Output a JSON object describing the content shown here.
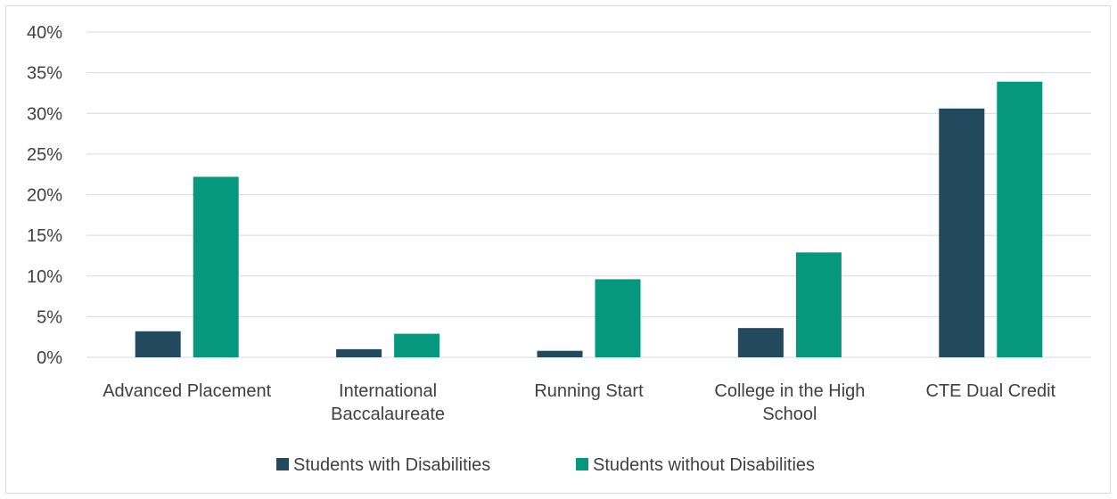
{
  "chart_data": {
    "type": "bar",
    "categories": [
      [
        "Advanced Placement"
      ],
      [
        "International",
        "Baccalaureate"
      ],
      [
        "Running Start"
      ],
      [
        "College in the High",
        "School"
      ],
      [
        "CTE Dual Credit"
      ]
    ],
    "series": [
      {
        "name": "Students with Disabilities",
        "color": "#23495e",
        "values": [
          3.2,
          1.0,
          0.8,
          3.6,
          30.6
        ]
      },
      {
        "name": "Students without Disabilities",
        "color": "#06987e",
        "values": [
          22.2,
          2.9,
          9.6,
          12.9,
          33.9
        ]
      }
    ],
    "ylim": [
      0,
      40
    ],
    "yticks": [
      0,
      5,
      10,
      15,
      20,
      25,
      30,
      35,
      40
    ],
    "ytick_labels": [
      "0%",
      "5%",
      "10%",
      "15%",
      "20%",
      "25%",
      "30%",
      "35%",
      "40%"
    ],
    "grid": true,
    "legend_position": "bottom"
  }
}
